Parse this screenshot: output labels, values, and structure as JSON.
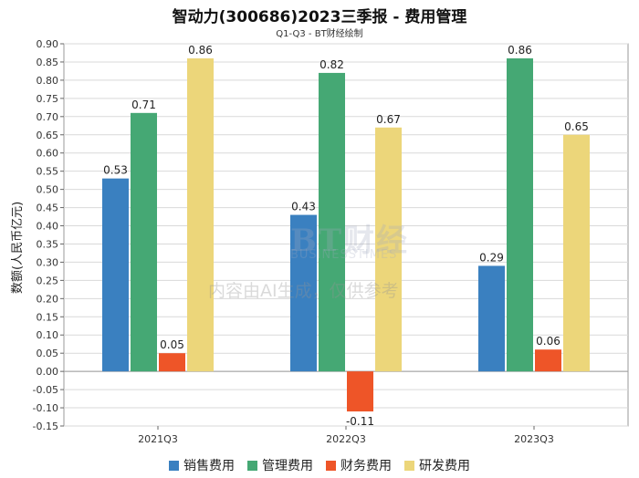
{
  "title": "智动力(300686)2023三季报 - 费用管理",
  "subtitle": "Q1-Q3 - BT财经绘制",
  "watermark": {
    "logo": "BT财经",
    "sub": "BUSINESSTIMES",
    "note": "内容由AI生成，仅供参考"
  },
  "colors": {
    "销售费用": "#3a80c0",
    "管理费用": "#45a874",
    "财务费用": "#ee5528",
    "研发费用": "#ecd67a"
  },
  "chart_data": {
    "type": "bar",
    "categories": [
      "2021Q3",
      "2022Q3",
      "2023Q3"
    ],
    "series": [
      {
        "name": "销售费用",
        "values": [
          0.53,
          0.43,
          0.29
        ]
      },
      {
        "name": "管理费用",
        "values": [
          0.71,
          0.82,
          0.86
        ]
      },
      {
        "name": "财务费用",
        "values": [
          0.05,
          -0.11,
          0.06
        ]
      },
      {
        "name": "研发费用",
        "values": [
          0.86,
          0.67,
          0.65
        ]
      }
    ],
    "ylabel": "数额(人民币亿元)",
    "ylim": [
      -0.15,
      0.9
    ],
    "yticks": [
      "-0.15",
      "-0.10",
      "-0.05",
      "0.00",
      "0.05",
      "0.10",
      "0.15",
      "0.20",
      "0.25",
      "0.30",
      "0.35",
      "0.40",
      "0.45",
      "0.50",
      "0.55",
      "0.60",
      "0.65",
      "0.70",
      "0.75",
      "0.80",
      "0.85",
      "0.90"
    ],
    "grid": true,
    "legend_position": "bottom"
  }
}
